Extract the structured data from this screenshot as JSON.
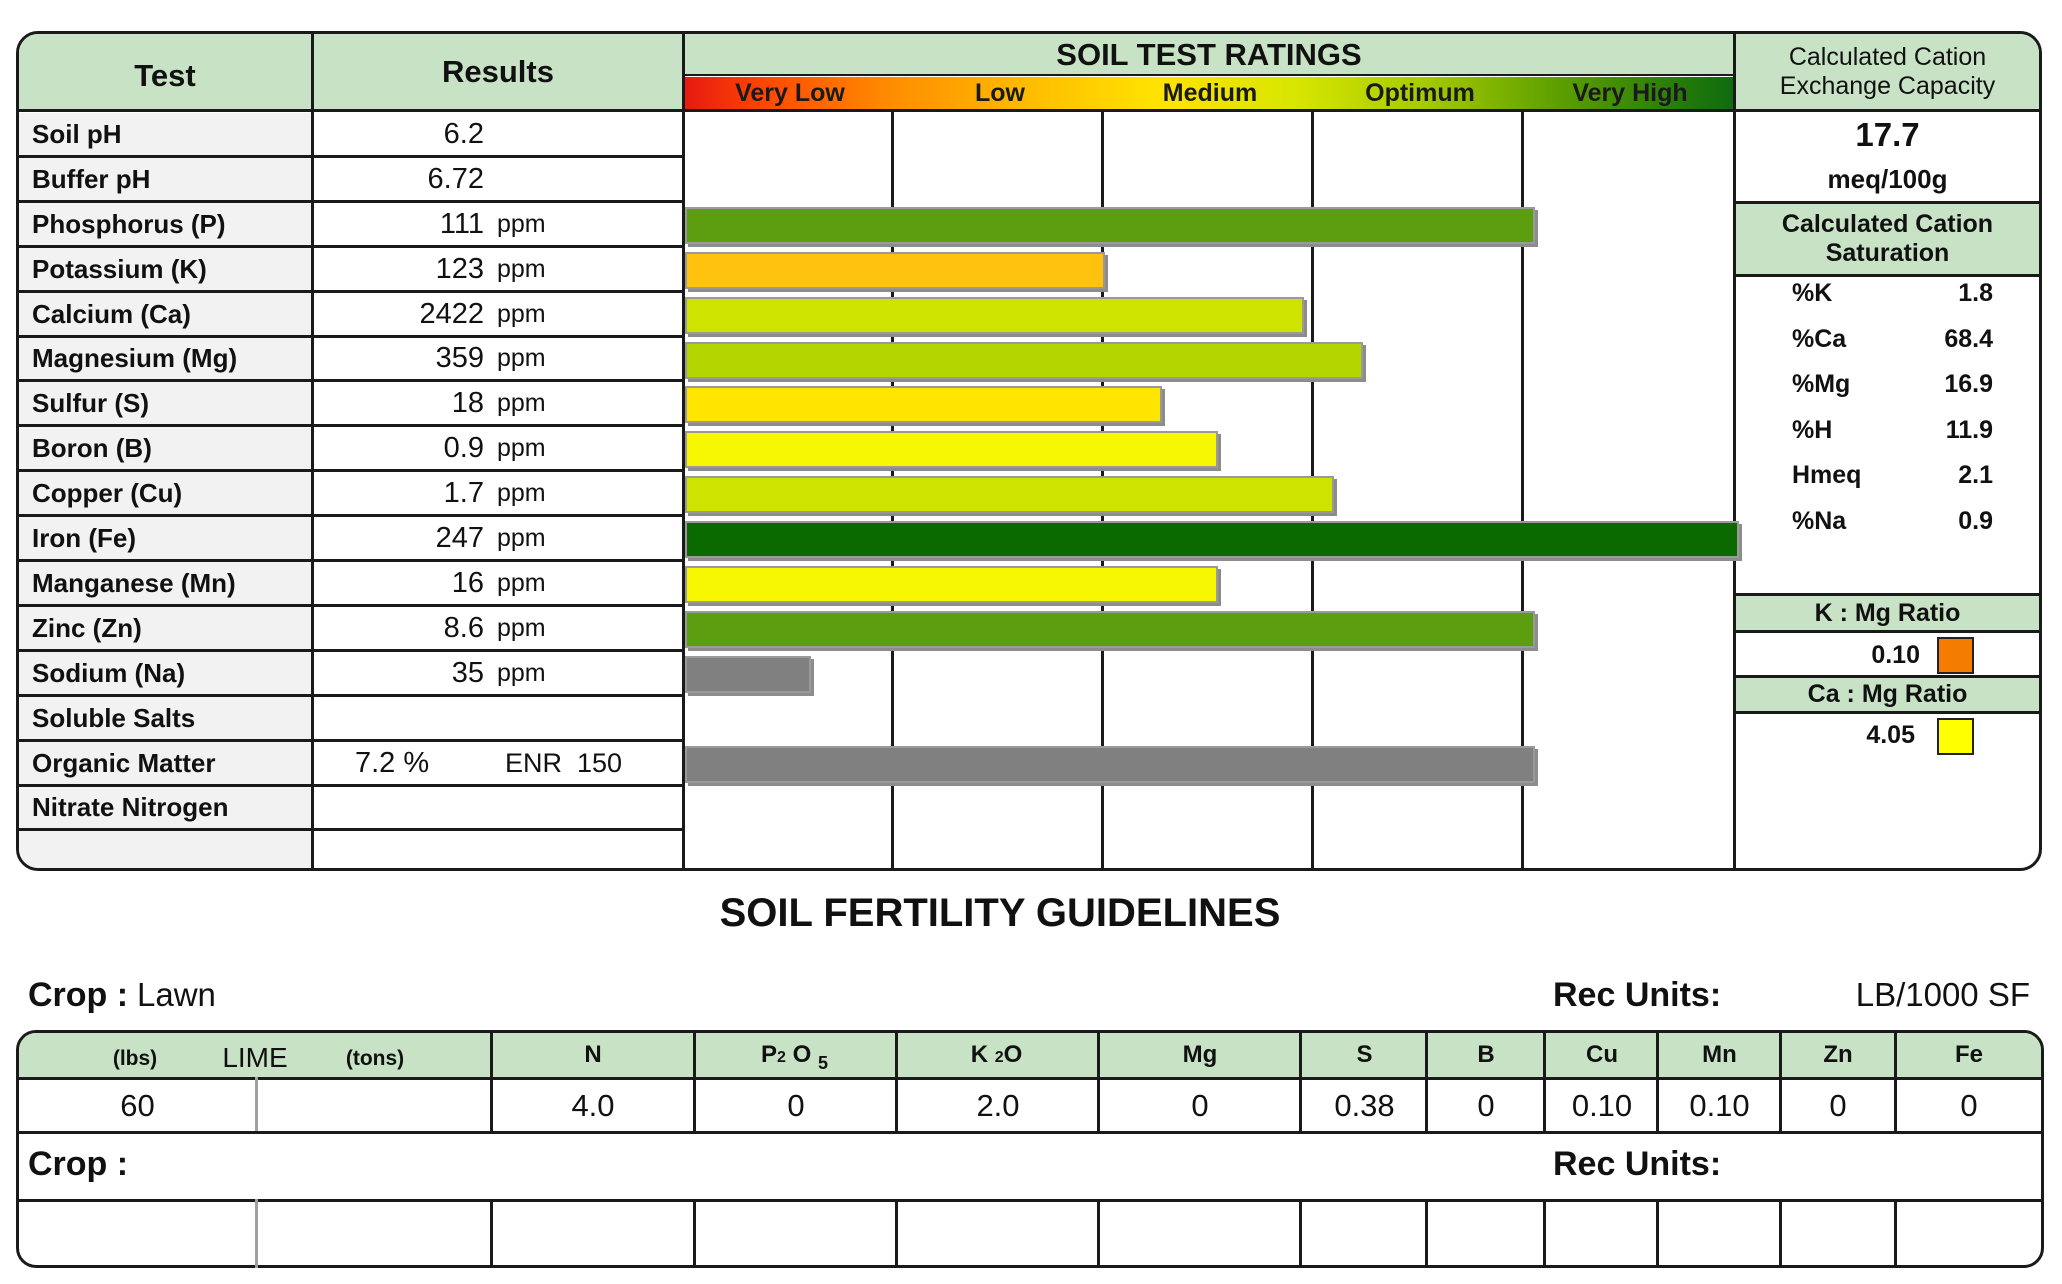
{
  "ratings": {
    "header_test": "Test",
    "header_results": "Results",
    "title": "SOIL TEST RATINGS",
    "scale": [
      "Very Low",
      "Low",
      "Medium",
      "Optimum",
      "Very High"
    ],
    "rows": [
      {
        "test": "Soil pH",
        "value": "6.2",
        "unit": "",
        "extra": "",
        "bar": null
      },
      {
        "test": "Buffer pH",
        "value": "6.72",
        "unit": "",
        "extra": "",
        "bar": null
      },
      {
        "test": "Phosphorus (P)",
        "value": "111",
        "unit": "ppm",
        "extra": "",
        "bar": {
          "level": 4.03,
          "color": "#5c9e10"
        }
      },
      {
        "test": "Potassium (K)",
        "value": "123",
        "unit": "ppm",
        "extra": "",
        "bar": {
          "level": 1.98,
          "color": "#ffc20e"
        }
      },
      {
        "test": "Calcium (Ca)",
        "value": "2422",
        "unit": "ppm",
        "extra": "",
        "bar": {
          "level": 2.93,
          "color": "#cfe300"
        }
      },
      {
        "test": "Magnesium (Mg)",
        "value": "359",
        "unit": "ppm",
        "extra": "",
        "bar": {
          "level": 3.21,
          "color": "#b5d500"
        }
      },
      {
        "test": "Sulfur (S)",
        "value": "18",
        "unit": "ppm",
        "extra": "",
        "bar": {
          "level": 2.25,
          "color": "#ffe500"
        }
      },
      {
        "test": "Boron (B)",
        "value": "0.9",
        "unit": "ppm",
        "extra": "",
        "bar": {
          "level": 2.52,
          "color": "#f6f700"
        }
      },
      {
        "test": "Copper (Cu)",
        "value": "1.7",
        "unit": "ppm",
        "extra": "",
        "bar": {
          "level": 3.07,
          "color": "#cfe300"
        }
      },
      {
        "test": "Iron (Fe)",
        "value": "247",
        "unit": "ppm",
        "extra": "",
        "bar": {
          "level": 5.0,
          "color": "#0a6a00"
        }
      },
      {
        "test": "Manganese (Mn)",
        "value": "16",
        "unit": "ppm",
        "extra": "",
        "bar": {
          "level": 2.52,
          "color": "#f6f700"
        }
      },
      {
        "test": "Zinc (Zn)",
        "value": "8.6",
        "unit": "ppm",
        "extra": "",
        "bar": {
          "level": 4.03,
          "color": "#5c9e10"
        }
      },
      {
        "test": "Sodium (Na)",
        "value": "35",
        "unit": "ppm",
        "extra": "",
        "bar": {
          "level": 0.58,
          "color": "#808080"
        }
      },
      {
        "test": "Soluble Salts",
        "value": "",
        "unit": "",
        "extra": "",
        "bar": null
      },
      {
        "test": "Organic Matter",
        "value": "7.2 %",
        "unit": "",
        "extra": "ENR  150",
        "bar": {
          "level": 4.03,
          "color": "#808080"
        }
      },
      {
        "test": "Nitrate Nitrogen",
        "value": "",
        "unit": "",
        "extra": "",
        "bar": null
      },
      {
        "test": "",
        "value": "",
        "unit": "",
        "extra": "",
        "bar": null
      }
    ]
  },
  "cec": {
    "title": "Calculated Cation Exchange Capacity",
    "value": "17.7",
    "unit": "meq/100g",
    "saturation_title": "Calculated Cation Saturation",
    "saturation": [
      {
        "label": "%K",
        "value": "1.8"
      },
      {
        "label": "%Ca",
        "value": "68.4"
      },
      {
        "label": "%Mg",
        "value": "16.9"
      },
      {
        "label": "%H",
        "value": "11.9"
      },
      {
        "label": "Hmeq",
        "value": "2.1"
      },
      {
        "label": "%Na",
        "value": "0.9"
      }
    ],
    "k_mg_title": "K : Mg Ratio",
    "k_mg_value": "0.10",
    "k_mg_color": "#f47d00",
    "ca_mg_title": "Ca : Mg Ratio",
    "ca_mg_value": "4.05",
    "ca_mg_color": "#ffff00"
  },
  "guidelines": {
    "title": "SOIL FERTILITY GUIDELINES",
    "crop_label": "Crop :",
    "crop_value": "Lawn",
    "rec_units_label": "Rec Units:",
    "rec_units_value": "LB/1000 SF",
    "lime_lbs": "(lbs)",
    "lime_label": "LIME",
    "lime_tons": "(tons)",
    "p2o5": {
      "a": "P",
      "b": "2",
      "c": " O ",
      "d": "5"
    },
    "k2o": {
      "a": "K ",
      "b": "2",
      "c": "O"
    },
    "headers": [
      "N",
      "Mg",
      "S",
      "B",
      "Cu",
      "Mn",
      "Zn",
      "Fe"
    ],
    "values": {
      "lime_lbs": "60",
      "lime_tons": "",
      "N": "4.0",
      "P2O5": "0",
      "K2O": "2.0",
      "Mg": "0",
      "S": "0.38",
      "B": "0",
      "Cu": "0.10",
      "Mn": "0.10",
      "Zn": "0",
      "Fe": "0"
    },
    "crop2_label": "Crop :",
    "rec_units2_label": "Rec Units:"
  }
}
